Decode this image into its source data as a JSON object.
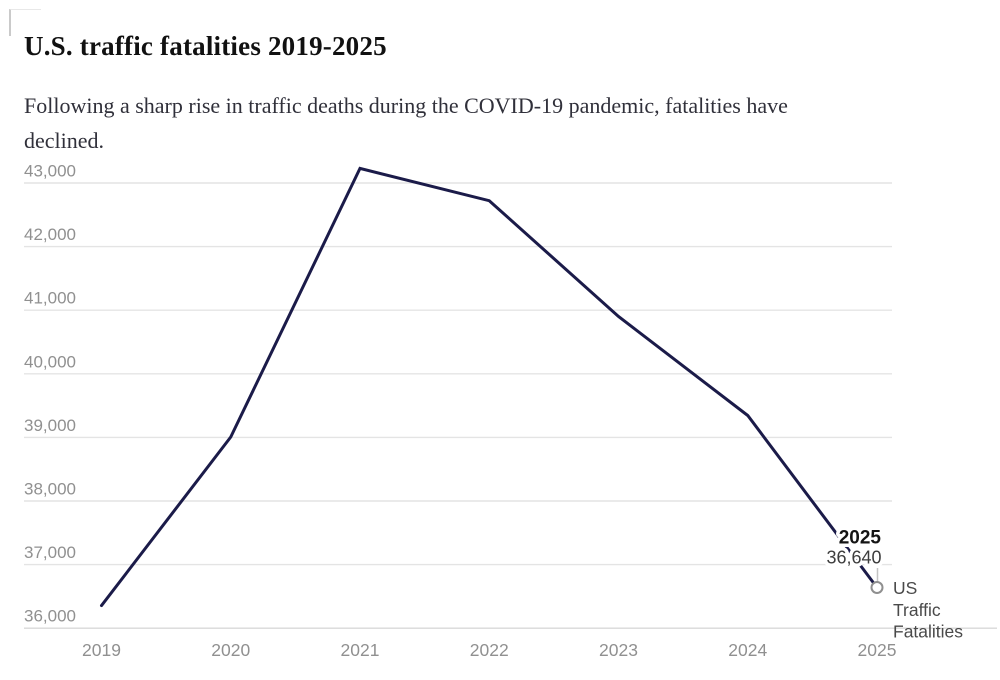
{
  "page": {
    "title": "U.S. traffic fatalities 2019-2025",
    "subtitle_lines": [
      "Following a sharp rise in traffic deaths during the COVID-19 pandemic, fatalities have",
      "declined."
    ]
  },
  "colors": {
    "line": "#1b1b49",
    "grid": "#e4e4e4",
    "baseline": "#d8d8d8",
    "axis_label": "#909090",
    "title": "#111111",
    "subtitle": "#30303a",
    "annotation_year": "#141414",
    "annotation_value": "#3d3d3d",
    "series_label": "#4a4a4a",
    "marker_stroke": "#8f8f8f",
    "leader": "#c4c4c4"
  },
  "chart_data": {
    "type": "line",
    "title": "U.S. traffic fatalities 2019-2025",
    "subtitle": "Following a sharp rise in traffic deaths during the COVID-19 pandemic, fatalities have declined.",
    "x": [
      2019,
      2020,
      2021,
      2022,
      2023,
      2024,
      2025
    ],
    "xtick_labels": [
      "2019",
      "2020",
      "2021",
      "2022",
      "2023",
      "2024",
      "2025"
    ],
    "series": [
      {
        "name": "US Traffic Fatalities",
        "values": [
          36355,
          39007,
          43230,
          42721,
          40901,
          39345,
          36640
        ]
      }
    ],
    "xlabel": "",
    "ylabel": "",
    "ylim": [
      36000,
      43250
    ],
    "yticks": [
      36000,
      37000,
      38000,
      39000,
      40000,
      41000,
      42000,
      43000
    ],
    "ytick_labels": [
      "36,000",
      "37,000",
      "38,000",
      "39,000",
      "40,000",
      "41,000",
      "42,000",
      "43,000"
    ],
    "grid": "horizontal",
    "legend_position": "endpoint-right",
    "endpoint_annotation": {
      "year": "2025",
      "value": "36,640",
      "series_label": "US Traffic Fatalities",
      "series_label_lines": [
        "US",
        "Traffic",
        "Fatalities"
      ]
    }
  }
}
